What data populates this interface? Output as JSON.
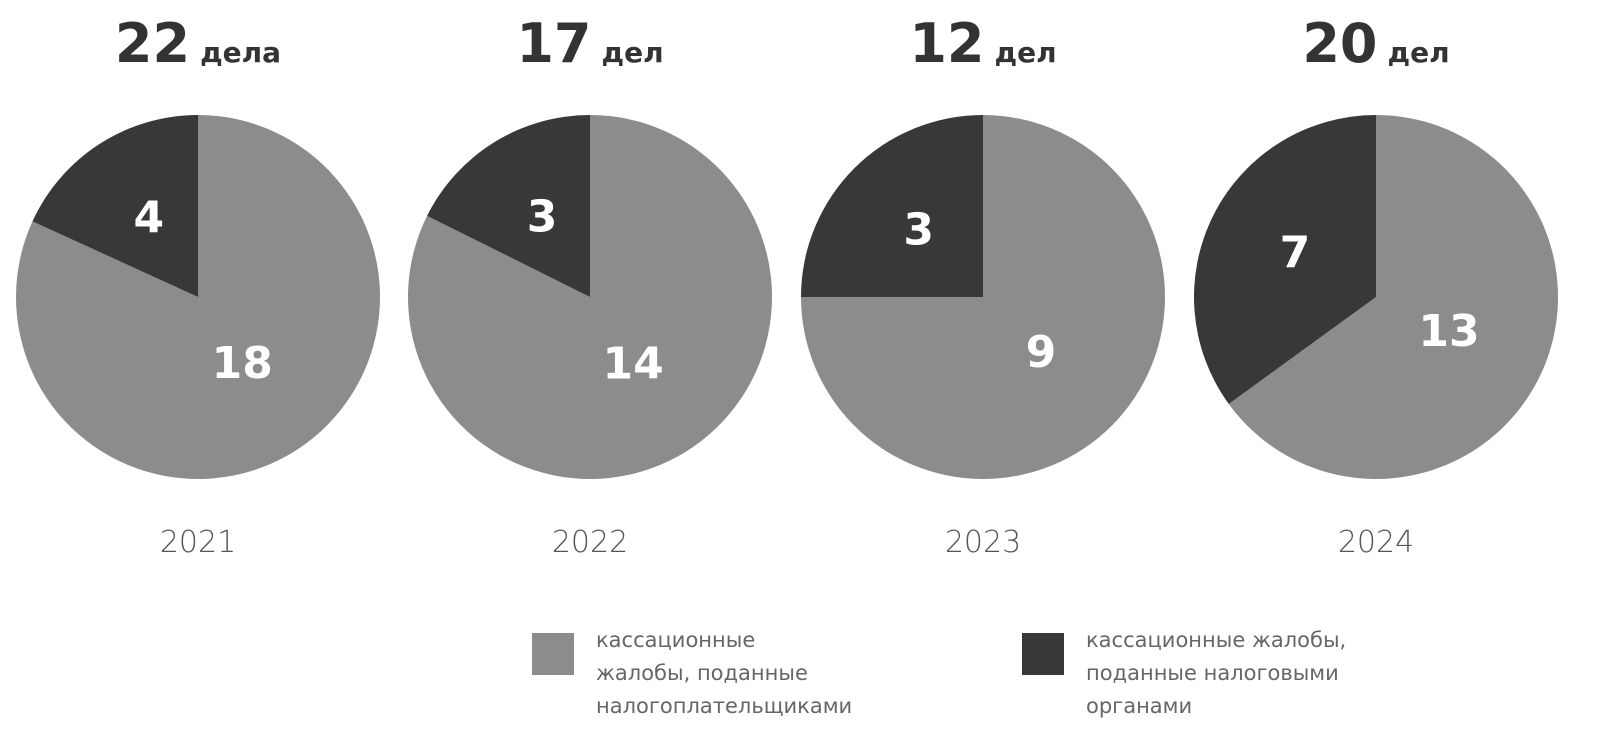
{
  "chart_data": [
    {
      "type": "pie",
      "total": 22,
      "unit": "дела",
      "values": [
        18,
        4
      ],
      "x_label": "2021"
    },
    {
      "type": "pie",
      "total": 17,
      "unit": "дел",
      "values": [
        14,
        3
      ],
      "x_label": "2022"
    },
    {
      "type": "pie",
      "total": 12,
      "unit": "дел",
      "values": [
        9,
        3
      ],
      "x_label": "2023"
    },
    {
      "type": "pie",
      "total": 20,
      "unit": "дел",
      "values": [
        13,
        7
      ],
      "x_label": "2024"
    }
  ],
  "legend": {
    "items": [
      {
        "name": [
          "кассационные",
          "жалобы, поданные",
          "налогоплательщиками"
        ],
        "color": "#8c8c8c"
      },
      {
        "name": [
          "кассационные жалобы,",
          "поданные налоговыми",
          "органами"
        ],
        "color": "#383838"
      }
    ]
  }
}
